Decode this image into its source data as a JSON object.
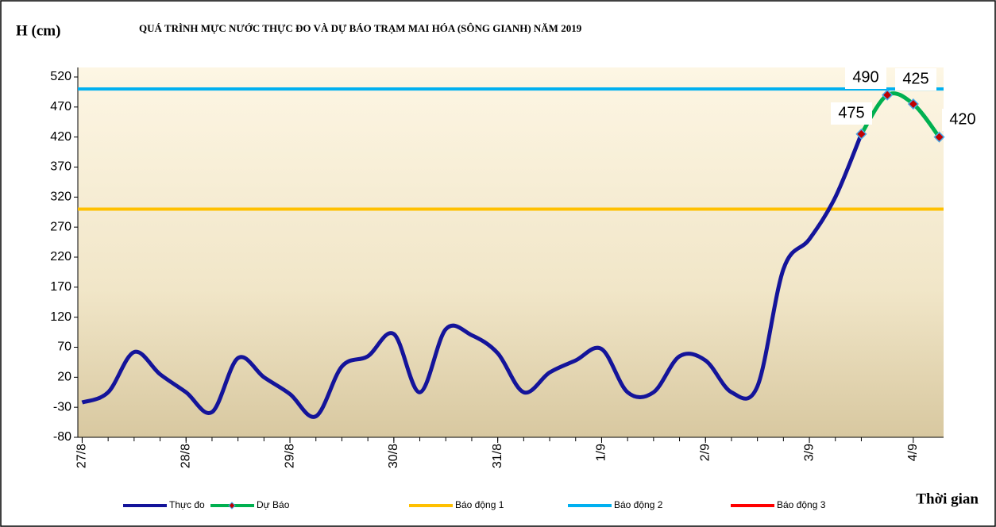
{
  "chart_data": {
    "type": "line",
    "title": "QUÁ TRÌNH MỰC NƯỚC THỰC ĐO VÀ DỰ BÁO TRẠM MAI HÓA (SÔNG GIANH) NĂM 2019",
    "y_label": "H (cm)",
    "x_label": "Thời gian",
    "xlim": [
      -1,
      199
    ],
    "xticks": [
      {
        "value": 0,
        "label": "27/8"
      },
      {
        "value": 24,
        "label": "28/8"
      },
      {
        "value": 48,
        "label": "29/8"
      },
      {
        "value": 72,
        "label": "30/8"
      },
      {
        "value": 96,
        "label": "31/8"
      },
      {
        "value": 120,
        "label": "1/9"
      },
      {
        "value": 144,
        "label": "2/9"
      },
      {
        "value": 168,
        "label": "3/9"
      },
      {
        "value": 192,
        "label": "4/9"
      }
    ],
    "ylim": [
      -80,
      520
    ],
    "yticks": [
      -80,
      -30,
      20,
      70,
      120,
      170,
      220,
      270,
      320,
      370,
      420,
      470,
      520
    ],
    "series": [
      {
        "name": "Thực đo",
        "color": "#14149a",
        "x": [
          0,
          6,
          12,
          18,
          24,
          30,
          36,
          42,
          48,
          54,
          60,
          66,
          72,
          78,
          84,
          90,
          96,
          102,
          108,
          114,
          120,
          126,
          132,
          138,
          144,
          150,
          156,
          162,
          168,
          174,
          180
        ],
        "values": [
          -22,
          -5,
          62,
          25,
          -5,
          -38,
          52,
          20,
          -8,
          -45,
          38,
          55,
          92,
          -5,
          100,
          90,
          60,
          -5,
          28,
          48,
          67,
          -5,
          -5,
          55,
          48,
          -5,
          5,
          200,
          250,
          320,
          425
        ]
      },
      {
        "name": "Dự Báo",
        "color": "#00b050",
        "marker_color": "#c00000",
        "x": [
          180,
          186,
          192,
          198
        ],
        "values": [
          425,
          490,
          475,
          420
        ]
      }
    ],
    "thresholds": [
      {
        "name": "Báo động 1",
        "color": "#ffc000",
        "value": 300
      },
      {
        "name": "Báo động 2",
        "color": "#00b0f0",
        "value": 500
      },
      {
        "name": "Báo động 3",
        "color": "#ff0000"
      }
    ],
    "annotations": [
      "475",
      "490",
      "425",
      "420"
    ]
  }
}
